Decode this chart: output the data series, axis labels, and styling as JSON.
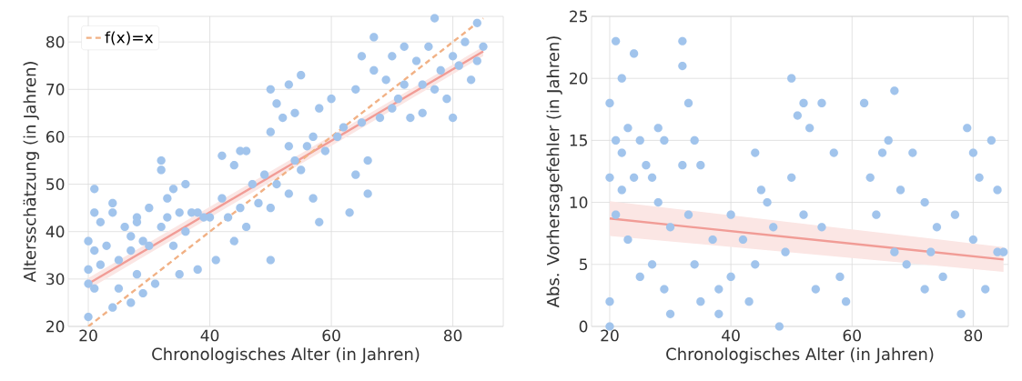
{
  "chart_data": [
    {
      "type": "scatter",
      "xlabel": "Chronologisches Alter (in Jahren)",
      "ylabel": "Altersschätzung (in Jahren)",
      "xlim": [
        16.7,
        88.3
      ],
      "ylim": [
        20,
        85.4
      ],
      "xticks": [
        20,
        40,
        60,
        80
      ],
      "yticks": [
        20,
        30,
        40,
        50,
        60,
        70,
        80
      ],
      "grid": true,
      "legend": "top left",
      "series": [
        {
          "type": "scatter",
          "color": "#a1c4ec",
          "x": [
            20,
            20,
            20,
            20,
            21,
            21,
            21,
            21,
            22,
            22,
            23,
            24,
            24,
            24,
            25,
            25,
            26,
            27,
            27,
            27,
            28,
            28,
            28,
            29,
            29,
            30,
            30,
            31,
            32,
            32,
            32,
            33,
            33,
            34,
            34,
            35,
            35,
            36,
            36,
            37,
            38,
            38,
            39,
            40,
            41,
            42,
            42,
            43,
            44,
            44,
            45,
            45,
            46,
            46,
            47,
            48,
            49,
            50,
            50,
            50,
            50,
            51,
            51,
            52,
            53,
            53,
            53,
            54,
            54,
            55,
            55,
            56,
            57,
            57,
            58,
            58,
            59,
            60,
            61,
            62,
            63,
            64,
            64,
            65,
            65,
            66,
            66,
            67,
            67,
            68,
            69,
            70,
            70,
            71,
            72,
            72,
            73,
            74,
            75,
            75,
            76,
            77,
            77,
            78,
            79,
            80,
            80,
            81,
            82,
            83,
            84,
            84,
            85
          ],
          "values": [
            32,
            38,
            22,
            29,
            49,
            44,
            36,
            28,
            42,
            33,
            37,
            46,
            44,
            24,
            34,
            28,
            41,
            39,
            36,
            25,
            43,
            42,
            31,
            38,
            27,
            45,
            37,
            29,
            55,
            53,
            41,
            47,
            43,
            49,
            37,
            44,
            31,
            50,
            40,
            44,
            44,
            32,
            43,
            43,
            34,
            56,
            47,
            43,
            54,
            38,
            57,
            45,
            57,
            41,
            50,
            46,
            52,
            70,
            61,
            45,
            34,
            67,
            50,
            64,
            71,
            58,
            48,
            65,
            55,
            73,
            53,
            58,
            60,
            47,
            66,
            42,
            57,
            68,
            60,
            62,
            44,
            70,
            52,
            77,
            63,
            55,
            48,
            81,
            74,
            64,
            72,
            77,
            66,
            68,
            79,
            71,
            64,
            76,
            71,
            65,
            79,
            85,
            70,
            74,
            68,
            77,
            64,
            75,
            80,
            72,
            84,
            76,
            79
          ]
        },
        {
          "type": "line",
          "color": "#f19c96",
          "line_style": "solid",
          "x": [
            20,
            85
          ],
          "values": [
            29,
            78
          ],
          "lower": [
            27.8,
            77
          ],
          "upper": [
            30.2,
            79
          ]
        },
        {
          "type": "line",
          "name": "f(x)=x",
          "color": "#f1b185",
          "line_style": "dashed",
          "x": [
            20,
            85
          ],
          "values": [
            20,
            85
          ]
        }
      ]
    },
    {
      "type": "scatter",
      "xlabel": "Chronologisches Alter (in Jahren)",
      "ylabel": "Abs. Vorhersagefehler (in Jahren)",
      "xlim": [
        17,
        85.8
      ],
      "ylim": [
        0,
        25
      ],
      "xticks": [
        20,
        40,
        60,
        80
      ],
      "yticks": [
        0,
        5,
        10,
        15,
        20,
        25
      ],
      "grid": true,
      "series": [
        {
          "type": "scatter",
          "color": "#a1c4ec",
          "x": [
            20,
            20,
            20,
            20,
            21,
            21,
            21,
            22,
            22,
            22,
            23,
            23,
            24,
            24,
            25,
            25,
            26,
            27,
            27,
            28,
            28,
            29,
            29,
            30,
            30,
            32,
            32,
            32,
            33,
            33,
            34,
            34,
            35,
            35,
            37,
            38,
            38,
            40,
            40,
            42,
            43,
            44,
            44,
            45,
            46,
            47,
            48,
            49,
            50,
            50,
            51,
            52,
            52,
            53,
            54,
            55,
            55,
            57,
            58,
            59,
            62,
            63,
            64,
            65,
            66,
            67,
            67,
            68,
            69,
            70,
            72,
            72,
            73,
            74,
            75,
            77,
            78,
            79,
            80,
            80,
            81,
            82,
            83,
            84,
            84,
            85
          ],
          "values": [
            18,
            12,
            2,
            0,
            23,
            15,
            9,
            20,
            14,
            11,
            16,
            7,
            22,
            12,
            15,
            4,
            13,
            12,
            5,
            16,
            10,
            15,
            3,
            8,
            1,
            23,
            21,
            13,
            18,
            9,
            15,
            5,
            13,
            2,
            7,
            3,
            1,
            9,
            4,
            7,
            2,
            14,
            5,
            11,
            10,
            8,
            0,
            6,
            20,
            12,
            17,
            18,
            9,
            16,
            3,
            18,
            8,
            14,
            4,
            2,
            18,
            12,
            9,
            14,
            15,
            19,
            6,
            11,
            5,
            14,
            10,
            3,
            6,
            8,
            4,
            9,
            1,
            16,
            14,
            7,
            12,
            3,
            15,
            11,
            6,
            6
          ]
        },
        {
          "type": "line",
          "color": "#f19c96",
          "line_style": "solid",
          "x": [
            20,
            85
          ],
          "values": [
            8.7,
            5.4
          ],
          "lower": [
            7.3,
            4.4
          ],
          "upper": [
            10.1,
            6.4
          ]
        }
      ]
    }
  ]
}
